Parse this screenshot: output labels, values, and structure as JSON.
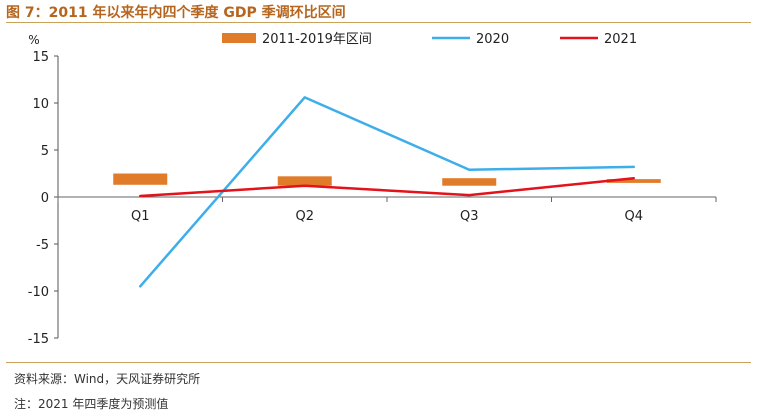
{
  "header": {
    "title": "图 7：2011 年以来年内四个季度 GDP 季调环比区间"
  },
  "footer": {
    "source": "资料来源：Wind，天风证券研究所",
    "note": "注：2021 年四季度为预测值"
  },
  "chart_data": {
    "type": "line",
    "y_unit": "%",
    "categories": [
      "Q1",
      "Q2",
      "Q3",
      "Q4"
    ],
    "ylim": [
      -15,
      15
    ],
    "yticks": [
      15,
      10,
      5,
      0,
      -5,
      -10,
      -15
    ],
    "grid": false,
    "legend_position": "top",
    "range_series": {
      "name": "2011-2019年区间",
      "color": "#e07b2a",
      "ranges": [
        [
          1.3,
          2.5
        ],
        [
          1.2,
          2.2
        ],
        [
          1.2,
          2.0
        ],
        [
          1.5,
          1.9
        ]
      ]
    },
    "series": [
      {
        "name": "2020",
        "color": "#3daee9",
        "values": [
          -9.5,
          10.6,
          2.9,
          3.2
        ]
      },
      {
        "name": "2021",
        "color": "#e3121b",
        "values": [
          0.1,
          1.2,
          0.2,
          2.0
        ]
      }
    ]
  }
}
